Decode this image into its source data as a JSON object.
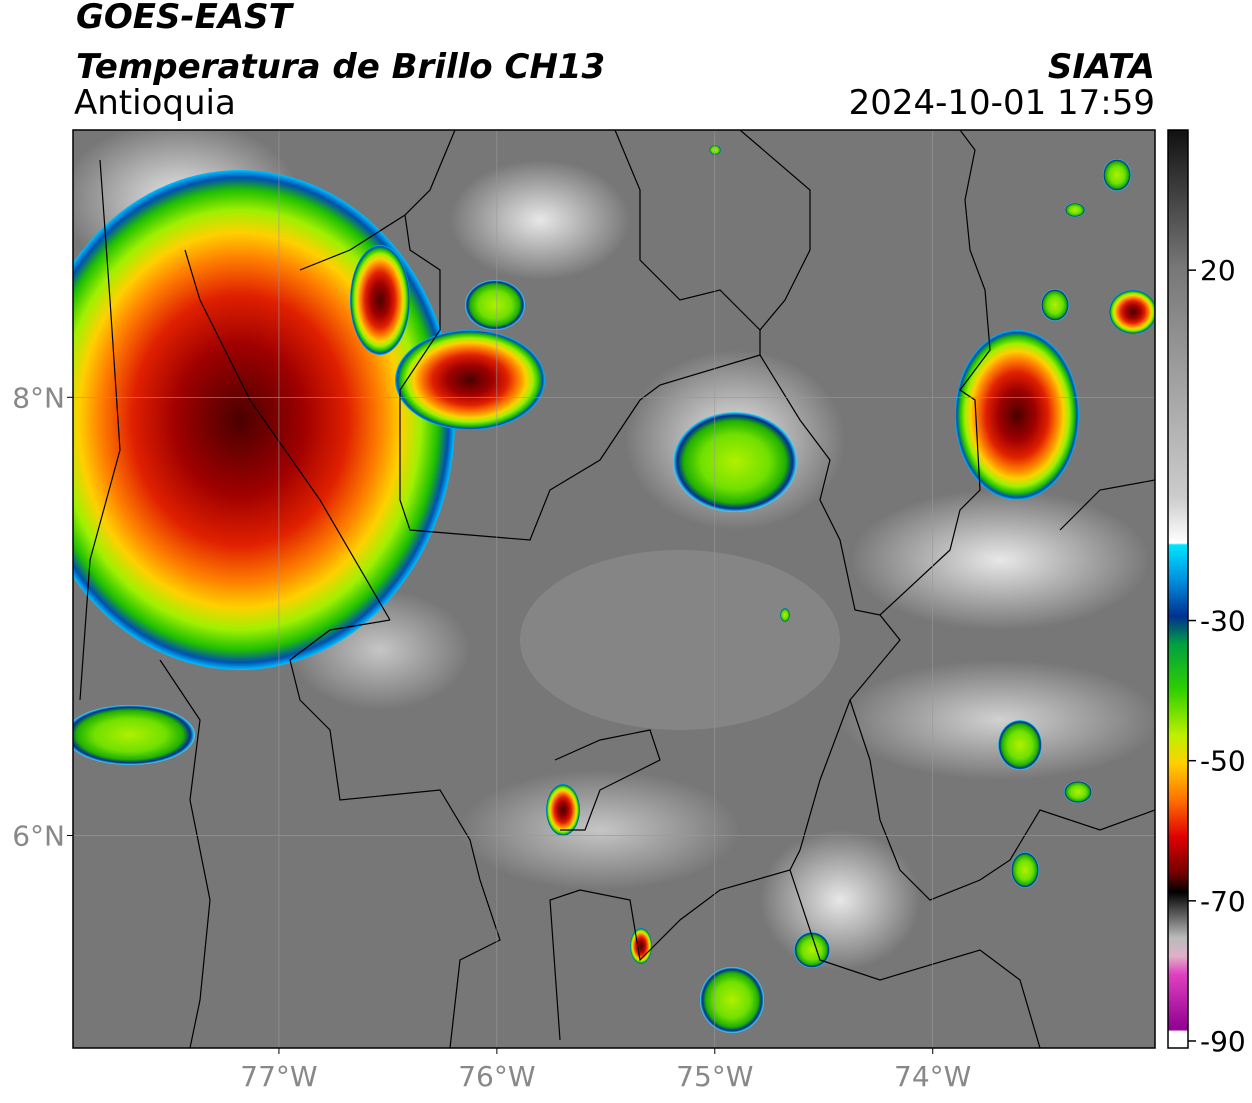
{
  "header": {
    "line1": "GOES-EAST",
    "line2": "Temperatura de Brillo CH13",
    "region": "Antioquia",
    "source": "SIATA",
    "datetime": "2024-10-01 17:59"
  },
  "map": {
    "xlim": [
      -77.945,
      -72.98
    ],
    "ylim": [
      5.03,
      9.22
    ],
    "xticks": [
      {
        "value": -77,
        "label": "77°W"
      },
      {
        "value": -76,
        "label": "76°W"
      },
      {
        "value": -75,
        "label": "75°W"
      },
      {
        "value": -74,
        "label": "74°W"
      }
    ],
    "yticks": [
      {
        "value": 8,
        "label": "8°N"
      },
      {
        "value": 6,
        "label": "6°N"
      }
    ],
    "grid": true
  },
  "colorbar": {
    "lim": [
      -91,
      40
    ],
    "ticks": [
      20,
      -30,
      -50,
      -70,
      -90
    ]
  }
}
